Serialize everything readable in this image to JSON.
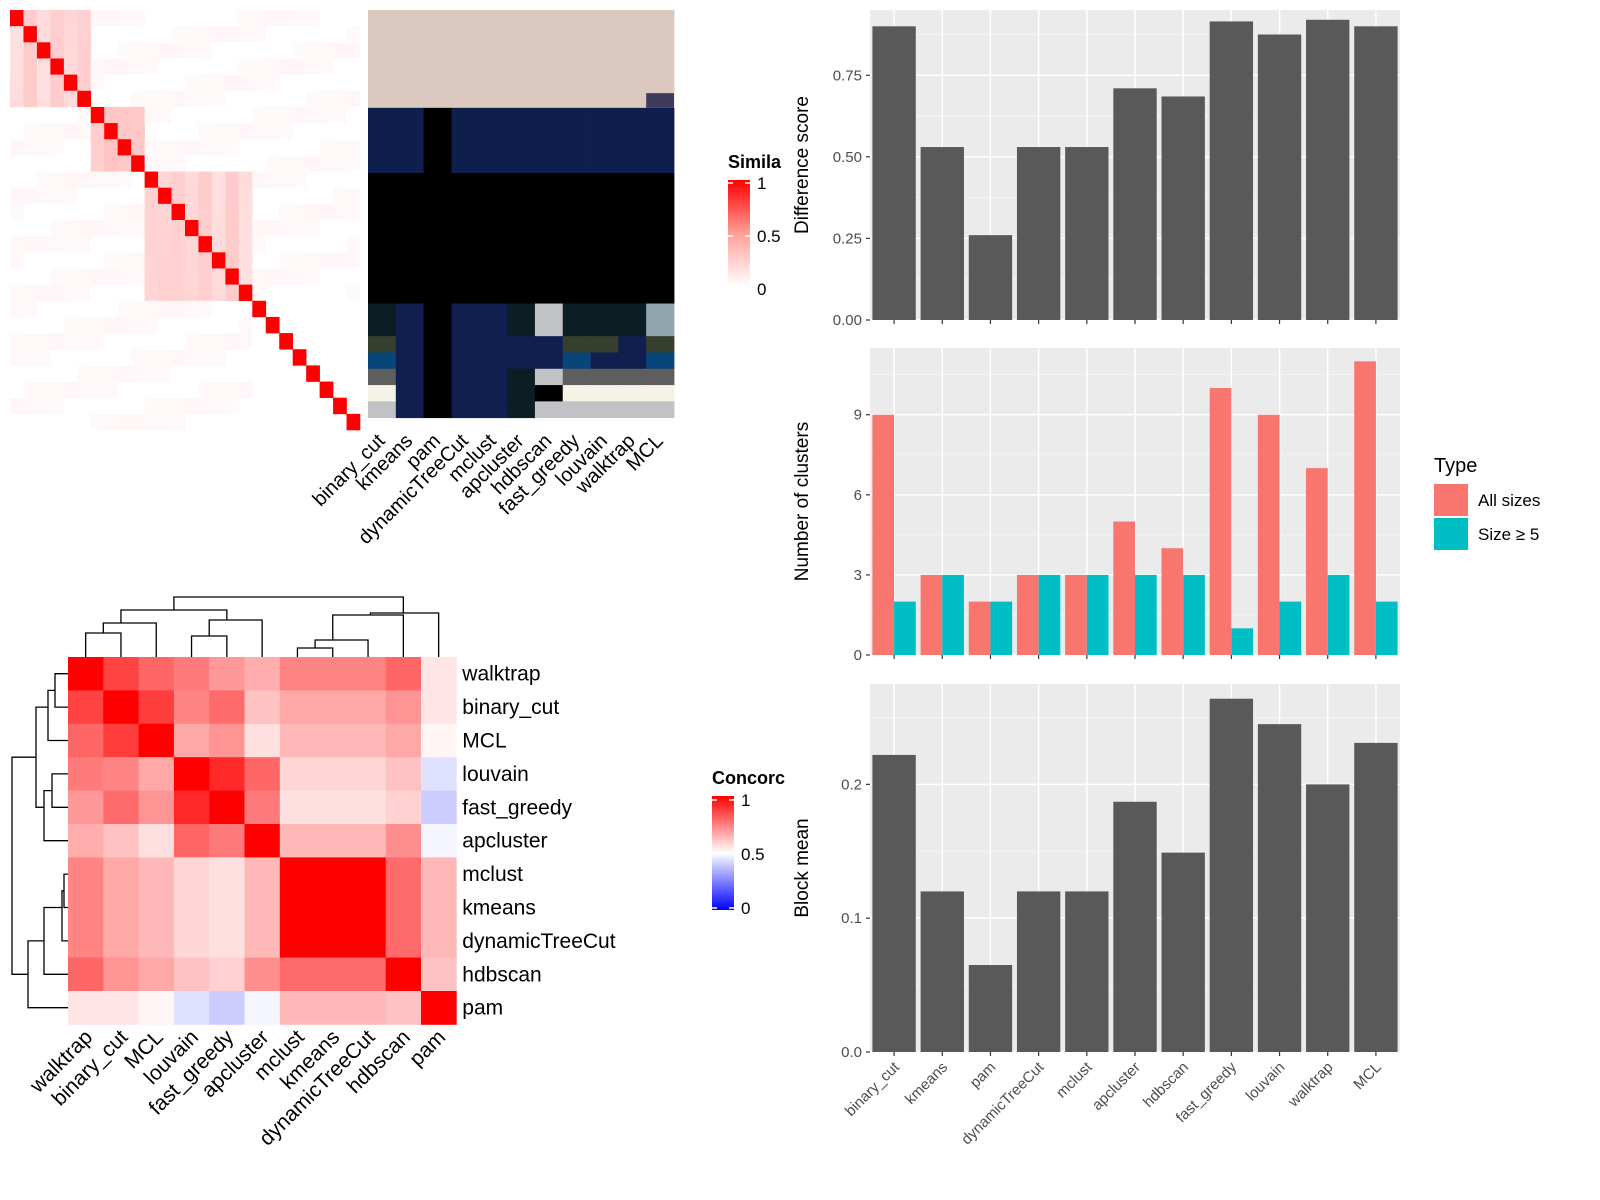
{
  "chart_data": [
    {
      "type": "heatmap",
      "panel": "similarity-matrix",
      "legend": {
        "title": "Simila",
        "ticks": [
          "1",
          "0.5",
          "0"
        ],
        "colors": [
          "#FF0000",
          "#FFFFFF"
        ]
      },
      "methods": [
        "binary_cut",
        "kmeans",
        "pam",
        "dynamicTreeCut",
        "mclust",
        "apcluster",
        "hdbscan",
        "fast_greedy",
        "louvain",
        "walktrap",
        "MCL"
      ],
      "n_terms": 26,
      "blocks": [
        {
          "start": 0,
          "end": 6,
          "level": 0.2
        },
        {
          "start": 6,
          "end": 10,
          "level": 0.25
        },
        {
          "start": 10,
          "end": 18,
          "level": 0.2
        },
        {
          "start": 18,
          "end": 26,
          "level": 0
        }
      ],
      "cluster_rows": [
        {
          "heights": 6,
          "colors": [
            "#DBC9C0",
            "#DBC9C0",
            "#DBC9C0",
            "#DBC9C0",
            "#DBC9C0",
            "#DBC9C0",
            "#DBC9C0",
            "#DBC9C0",
            "#DBC9C0",
            "#DBC9C0",
            "#DBC9C0"
          ]
        },
        {
          "heights": 4,
          "colors": [
            "#0F1F4D",
            "#0F1F4D",
            "#000000",
            "#0F1F4D",
            "#0F1F4D",
            "#0F1F4D",
            "#0F1F4D",
            "#0F1F4D",
            "#0F1F4D",
            "#0F1F4D",
            "#0F1F4D"
          ]
        },
        {
          "heights": 8,
          "colors": [
            "#000000",
            "#000000",
            "#000000",
            "#000000",
            "#000000",
            "#000000",
            "#000000",
            "#000000",
            "#000000",
            "#000000",
            "#000000"
          ]
        },
        {
          "heights": 2,
          "colors": [
            "#0A1E23",
            "#101F4F",
            "#000000",
            "#101F4F",
            "#101F4F",
            "#0A1E23",
            "#C0C2C5",
            "#0A1E23",
            "#0A1E23",
            "#0A1E23",
            "#8FA6AC"
          ]
        },
        {
          "heights": 1,
          "colors": [
            "#363E2E",
            "#101F4F",
            "#000000",
            "#101F4F",
            "#101F4F",
            "#101F4F",
            "#101F4F",
            "#363E2E",
            "#363E2E",
            "#101F4F",
            "#363E2E"
          ]
        },
        {
          "heights": 1,
          "colors": [
            "#08457A",
            "#101F4F",
            "#000000",
            "#101F4F",
            "#101F4F",
            "#101F4F",
            "#101F4F",
            "#08457A",
            "#101F4F",
            "#101F4F",
            "#08457A"
          ]
        },
        {
          "heights": 1,
          "colors": [
            "#5E5E5E",
            "#101F4F",
            "#000000",
            "#101F4F",
            "#101F4F",
            "#0A1E23",
            "#C0C2C5",
            "#5E5E5E",
            "#5E5E5E",
            "#5E5E5E",
            "#5E5E5E"
          ]
        },
        {
          "heights": 1,
          "colors": [
            "#F5F3E5",
            "#101F4F",
            "#000000",
            "#101F4F",
            "#101F4F",
            "#0A1E23",
            "#000000",
            "#F5F3E5",
            "#F5F3E5",
            "#F5F3E5",
            "#F5F3E5"
          ]
        },
        {
          "heights": 1,
          "colors": [
            "#C0C2C5",
            "#101F4F",
            "#000000",
            "#101F4F",
            "#101F4F",
            "#0A1E23",
            "#C0C2C5",
            "#C0C2C5",
            "#C0C2C5",
            "#C0C2C5",
            "#C0C2C5"
          ]
        }
      ]
    },
    {
      "type": "bar",
      "panel": "difference-score",
      "ylabel": "Difference score",
      "ylim": [
        0,
        0.95
      ],
      "yticks": [
        "0.00",
        "0.25",
        "0.50",
        "0.75"
      ],
      "categories": [
        "binary_cut",
        "kmeans",
        "pam",
        "dynamicTreeCut",
        "mclust",
        "apcluster",
        "hdbscan",
        "fast_greedy",
        "louvain",
        "walktrap",
        "MCL"
      ],
      "values": [
        0.9,
        0.53,
        0.26,
        0.53,
        0.53,
        0.71,
        0.685,
        0.915,
        0.875,
        0.92,
        0.9
      ],
      "color": "#595959"
    },
    {
      "type": "bar",
      "panel": "number-of-clusters",
      "ylabel": "Number of clusters",
      "ylim": [
        0,
        11.5
      ],
      "yticks": [
        "0",
        "3",
        "6",
        "9"
      ],
      "categories": [
        "binary_cut",
        "kmeans",
        "pam",
        "dynamicTreeCut",
        "mclust",
        "apcluster",
        "hdbscan",
        "fast_greedy",
        "louvain",
        "walktrap",
        "MCL"
      ],
      "series": [
        {
          "name": "All sizes",
          "color": "#F8766D",
          "values": [
            9,
            3,
            2,
            3,
            3,
            5,
            4,
            10,
            9,
            7,
            11
          ]
        },
        {
          "name": "Size ≥ 5",
          "color": "#00BFC4",
          "values": [
            2,
            3,
            2,
            3,
            3,
            3,
            3,
            1,
            2,
            3,
            2
          ]
        }
      ],
      "legend": {
        "title": "Type",
        "placement": "right"
      }
    },
    {
      "type": "bar",
      "panel": "block-mean",
      "ylabel": "Block mean",
      "ylim": [
        0,
        0.275
      ],
      "yticks": [
        "0.0",
        "0.1",
        "0.2"
      ],
      "categories": [
        "binary_cut",
        "kmeans",
        "pam",
        "dynamicTreeCut",
        "mclust",
        "apcluster",
        "hdbscan",
        "fast_greedy",
        "louvain",
        "walktrap",
        "MCL"
      ],
      "values": [
        0.222,
        0.12,
        0.065,
        0.12,
        0.12,
        0.187,
        0.149,
        0.264,
        0.245,
        0.2,
        0.231
      ],
      "color": "#595959"
    },
    {
      "type": "heatmap",
      "panel": "concordance",
      "legend": {
        "title": "Concorc",
        "ticks": [
          "1",
          "0.5",
          "0"
        ],
        "colors": [
          "#FF0000",
          "#FFFFFF",
          "#0000FF"
        ]
      },
      "rows": [
        "walktrap",
        "binary_cut",
        "MCL",
        "louvain",
        "fast_greedy",
        "apcluster",
        "mclust",
        "kmeans",
        "dynamicTreeCut",
        "hdbscan",
        "pam"
      ],
      "cols": [
        "walktrap",
        "binary_cut",
        "MCL",
        "louvain",
        "fast_greedy",
        "apcluster",
        "mclust",
        "kmeans",
        "dynamicTreeCut",
        "hdbscan",
        "pam"
      ],
      "values": [
        [
          1.0,
          0.87,
          0.8,
          0.76,
          0.7,
          0.66,
          0.74,
          0.74,
          0.74,
          0.8,
          0.55
        ],
        [
          0.87,
          1.0,
          0.88,
          0.74,
          0.79,
          0.62,
          0.67,
          0.67,
          0.67,
          0.71,
          0.55
        ],
        [
          0.8,
          0.88,
          1.0,
          0.67,
          0.71,
          0.56,
          0.64,
          0.64,
          0.64,
          0.67,
          0.52
        ],
        [
          0.76,
          0.74,
          0.67,
          1.0,
          0.92,
          0.8,
          0.58,
          0.58,
          0.58,
          0.62,
          0.44
        ],
        [
          0.7,
          0.79,
          0.71,
          0.92,
          1.0,
          0.76,
          0.56,
          0.56,
          0.56,
          0.59,
          0.4
        ],
        [
          0.66,
          0.62,
          0.56,
          0.8,
          0.76,
          1.0,
          0.64,
          0.64,
          0.64,
          0.72,
          0.48
        ],
        [
          0.74,
          0.67,
          0.64,
          0.58,
          0.56,
          0.64,
          1.0,
          1.0,
          1.0,
          0.79,
          0.64
        ],
        [
          0.74,
          0.67,
          0.64,
          0.58,
          0.56,
          0.64,
          1.0,
          1.0,
          1.0,
          0.79,
          0.64
        ],
        [
          0.74,
          0.67,
          0.64,
          0.58,
          0.56,
          0.64,
          1.0,
          1.0,
          1.0,
          0.79,
          0.64
        ],
        [
          0.8,
          0.71,
          0.67,
          0.62,
          0.59,
          0.72,
          0.79,
          0.79,
          0.79,
          1.0,
          0.62
        ],
        [
          0.55,
          0.55,
          0.52,
          0.44,
          0.4,
          0.48,
          0.64,
          0.64,
          0.64,
          0.62,
          1.0
        ]
      ]
    }
  ]
}
